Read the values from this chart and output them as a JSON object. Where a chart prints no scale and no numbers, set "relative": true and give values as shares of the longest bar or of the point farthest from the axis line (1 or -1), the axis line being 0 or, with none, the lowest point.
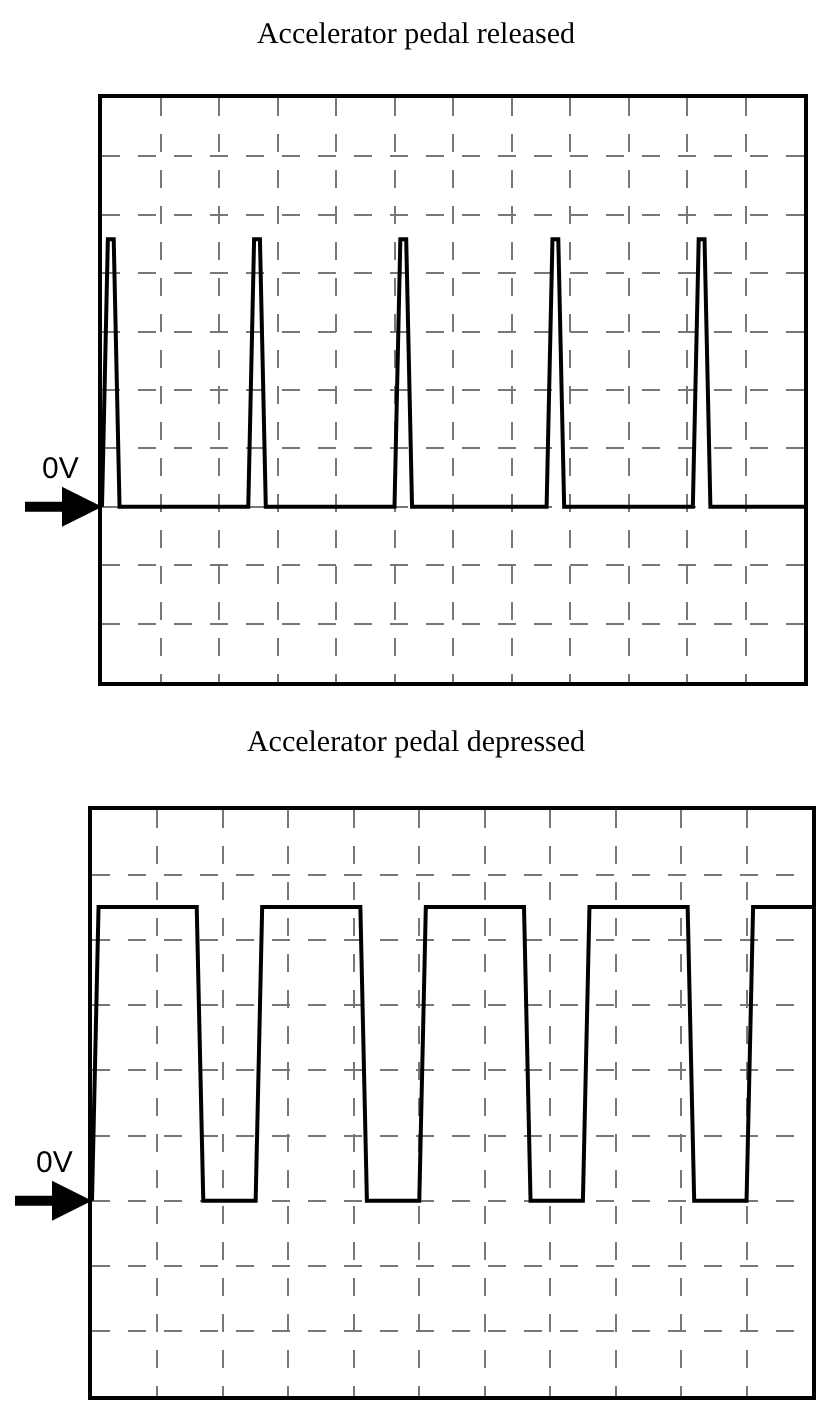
{
  "chart_data": [
    {
      "type": "line",
      "title": "Accelerator pedal released",
      "relative": true,
      "color": "#000000",
      "grid": true,
      "categories": [
        null,
        null,
        null,
        null,
        null,
        null,
        null,
        null,
        null,
        null,
        null,
        null,
        null,
        null,
        null,
        null,
        null,
        null,
        null,
        null,
        null,
        null,
        null,
        null,
        null,
        null,
        null,
        null,
        null,
        null,
        null,
        null,
        null,
        null,
        null,
        null,
        null,
        null,
        null,
        null,
        null,
        null,
        null,
        null,
        null,
        null,
        null,
        null,
        null,
        null,
        null,
        null,
        null,
        null,
        null,
        null,
        null,
        null,
        null,
        null,
        null,
        null,
        null,
        null,
        null,
        null,
        null,
        null,
        null,
        null,
        null,
        null,
        null,
        null,
        null,
        null,
        null,
        null,
        null,
        null,
        null,
        null,
        null,
        null,
        null,
        null,
        null,
        null,
        null,
        null,
        null,
        null,
        null,
        null,
        null,
        null,
        null,
        null,
        null,
        null,
        null,
        null,
        null,
        null,
        null,
        null,
        null,
        null,
        null,
        null,
        null,
        null,
        null,
        null,
        null,
        null,
        null,
        null,
        null,
        null,
        null
      ],
      "values": [
        0,
        1,
        1,
        0,
        0,
        0,
        0,
        0,
        0,
        0,
        0,
        0,
        0,
        0,
        0,
        0,
        0,
        0,
        0,
        0,
        0,
        0,
        0,
        0,
        0,
        0,
        1,
        1,
        0,
        0,
        0,
        0,
        0,
        0,
        0,
        0,
        0,
        0,
        0,
        0,
        0,
        0,
        0,
        0,
        0,
        0,
        0,
        0,
        0,
        0,
        0,
        1,
        1,
        0,
        0,
        0,
        0,
        0,
        0,
        0,
        0,
        0,
        0,
        0,
        0,
        0,
        0,
        0,
        0,
        0,
        0,
        0,
        0,
        0,
        0,
        0,
        0,
        1,
        1,
        0,
        0,
        0,
        0,
        0,
        0,
        0,
        0,
        0,
        0,
        0,
        0,
        0,
        0,
        0,
        0,
        0,
        0,
        0,
        0,
        0,
        0,
        0,
        1,
        1,
        0,
        0,
        0,
        0,
        0,
        0,
        0,
        0,
        0,
        0,
        0,
        0,
        0,
        0,
        0,
        0,
        0
      ],
      "annotations": [
        "0V"
      ]
    },
    {
      "type": "line",
      "title": "Accelerator pedal depressed",
      "relative": true,
      "color": "#000000",
      "grid": true,
      "categories": [
        null,
        null,
        null,
        null,
        null,
        null,
        null,
        null,
        null,
        null,
        null,
        null,
        null,
        null,
        null,
        null,
        null,
        null,
        null,
        null,
        null,
        null,
        null,
        null,
        null,
        null,
        null,
        null,
        null,
        null,
        null,
        null,
        null,
        null,
        null,
        null,
        null,
        null,
        null,
        null,
        null,
        null,
        null,
        null,
        null,
        null,
        null,
        null,
        null,
        null,
        null,
        null,
        null,
        null,
        null,
        null,
        null,
        null,
        null,
        null,
        null,
        null,
        null,
        null,
        null,
        null,
        null,
        null,
        null,
        null,
        null,
        null,
        null,
        null,
        null,
        null,
        null,
        null,
        null,
        null,
        null,
        null,
        null,
        null,
        null,
        null,
        null,
        null,
        null,
        null,
        null,
        null,
        null,
        null,
        null,
        null,
        null,
        null,
        null,
        null,
        null,
        null,
        null,
        null,
        null,
        null,
        null,
        null,
        null,
        null,
        null
      ],
      "values": [
        0,
        1,
        1,
        1,
        1,
        1,
        1,
        1,
        1,
        1,
        1,
        1,
        1,
        1,
        1,
        1,
        1,
        0,
        0,
        0,
        0,
        0,
        0,
        0,
        0,
        0,
        1,
        1,
        1,
        1,
        1,
        1,
        1,
        1,
        1,
        1,
        1,
        1,
        1,
        1,
        1,
        1,
        0,
        0,
        0,
        0,
        0,
        0,
        0,
        0,
        0,
        1,
        1,
        1,
        1,
        1,
        1,
        1,
        1,
        1,
        1,
        1,
        1,
        1,
        1,
        1,
        1,
        0,
        0,
        0,
        0,
        0,
        0,
        0,
        0,
        0,
        1,
        1,
        1,
        1,
        1,
        1,
        1,
        1,
        1,
        1,
        1,
        1,
        1,
        1,
        1,
        1,
        0,
        0,
        0,
        0,
        0,
        0,
        0,
        0,
        0,
        1,
        1,
        1,
        1,
        1,
        1,
        1,
        1,
        1,
        1
      ],
      "annotations": [
        "0V"
      ]
    }
  ]
}
